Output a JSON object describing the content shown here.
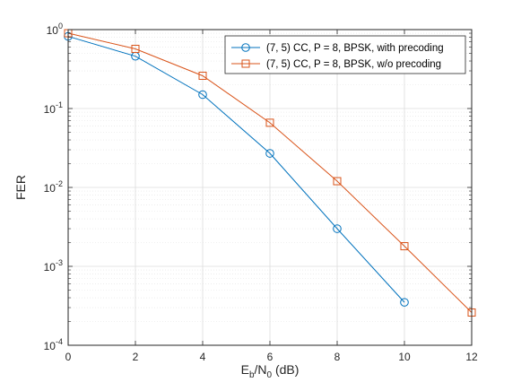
{
  "chart_data": {
    "type": "line",
    "xlabel": {
      "main": "E",
      "sub1": "b",
      "mid": "/N",
      "sub2": "0",
      "tail": " (dB)"
    },
    "ylabel": "FER",
    "xlim": [
      0,
      12
    ],
    "ylim": [
      0.0001,
      1
    ],
    "yscale": "log",
    "grid": true,
    "minor_grid": true,
    "legend_position": "top-right",
    "x_ticks": [
      0,
      2,
      4,
      6,
      8,
      10,
      12
    ],
    "y_ticks": [
      {
        "value": 1,
        "base": "10",
        "exp": "0"
      },
      {
        "value": 0.1,
        "base": "10",
        "exp": "-1"
      },
      {
        "value": 0.01,
        "base": "10",
        "exp": "-2"
      },
      {
        "value": 0.001,
        "base": "10",
        "exp": "-3"
      },
      {
        "value": 0.0001,
        "base": "10",
        "exp": "-4"
      }
    ],
    "series": [
      {
        "name": "(7, 5) CC, P = 8, BPSK, with precoding",
        "color": "#0072BD",
        "marker": "circle",
        "x": [
          0,
          2,
          4,
          6,
          8,
          10
        ],
        "y": [
          0.82,
          0.46,
          0.15,
          0.027,
          0.003,
          0.00035
        ]
      },
      {
        "name": "(7, 5) CC, P = 8, BPSK, w/o precoding",
        "color": "#D95319",
        "marker": "square",
        "x": [
          0,
          2,
          4,
          6,
          8,
          10,
          12
        ],
        "y": [
          0.9,
          0.57,
          0.26,
          0.066,
          0.012,
          0.0018,
          0.00026
        ]
      }
    ]
  }
}
